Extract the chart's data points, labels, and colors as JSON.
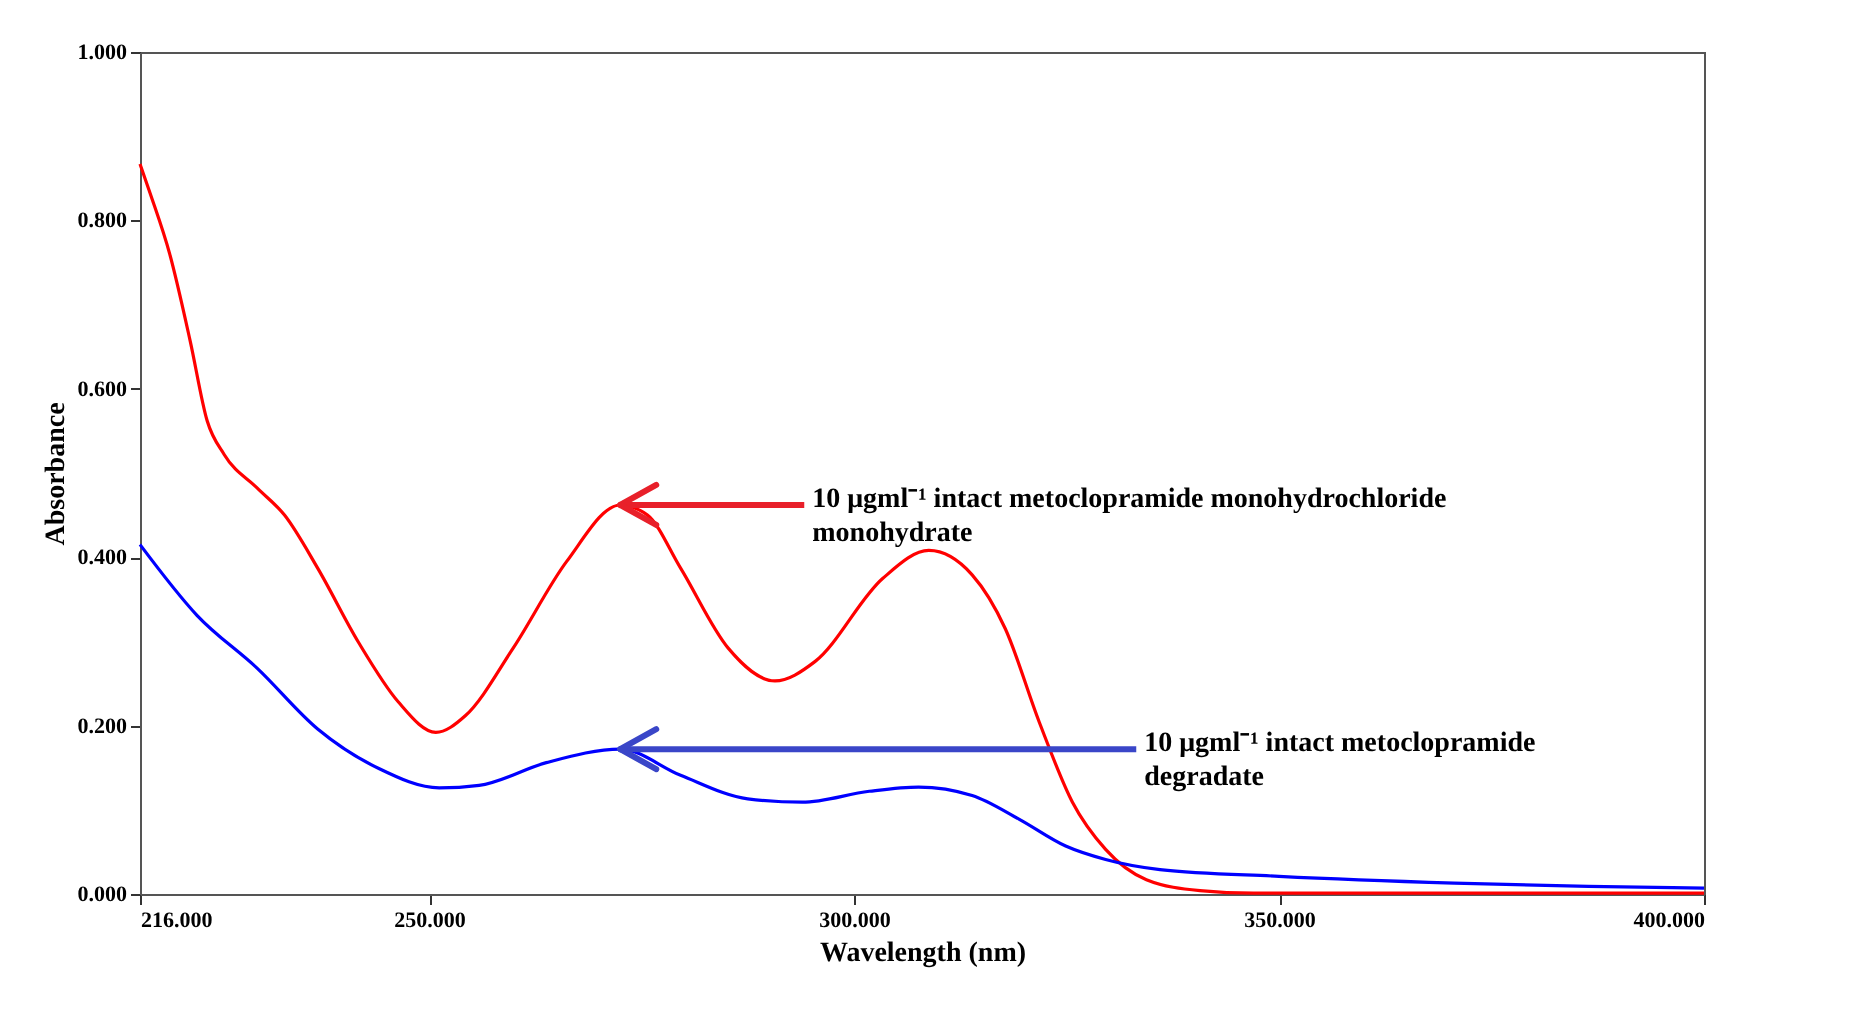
{
  "chart_data": {
    "type": "line",
    "xlabel": "Wavelength (nm)",
    "ylabel": "Absorbance",
    "xlim": [
      216,
      400
    ],
    "ylim": [
      0,
      1
    ],
    "xticks": [
      {
        "value": 216,
        "label": "216.000"
      },
      {
        "value": 250,
        "label": "250.000"
      },
      {
        "value": 300,
        "label": "300.000"
      },
      {
        "value": 350,
        "label": "350.000"
      },
      {
        "value": 400,
        "label": "400.000"
      }
    ],
    "yticks": [
      {
        "value": 0,
        "label": "0.000"
      },
      {
        "value": 0.2,
        "label": "0.200"
      },
      {
        "value": 0.4,
        "label": "0.400"
      },
      {
        "value": 0.6,
        "label": "0.600"
      },
      {
        "value": 0.8,
        "label": "0.800"
      },
      {
        "value": 1,
        "label": "1.000"
      }
    ],
    "grid": false,
    "legend": false,
    "line_style": "solid",
    "marker": "none",
    "series": [
      {
        "color": "#ff0000",
        "x": [
          216,
          217.2,
          219.5,
          221.9,
          223.9,
          225.9,
          229.8,
          233.0,
          236.9,
          241.7,
          246.4,
          250.8,
          254.3,
          259.9,
          266.2,
          272.5,
          275.7,
          279.6,
          285.2,
          290.7,
          295.4,
          303.4,
          308.8,
          313.9,
          317.8,
          321.8,
          325.7,
          329.6,
          334.4,
          340.7,
          347,
          400
        ],
        "values": [
          0.867,
          0.832,
          0.76,
          0.657,
          0.562,
          0.522,
          0.482,
          0.45,
          0.387,
          0.299,
          0.228,
          0.192,
          0.212,
          0.292,
          0.395,
          0.462,
          0.45,
          0.387,
          0.292,
          0.253,
          0.276,
          0.375,
          0.408,
          0.379,
          0.315,
          0.204,
          0.109,
          0.053,
          0.017,
          0.004,
          0.001,
          0.001
        ]
      },
      {
        "color": "#0000ff",
        "x": [
          216,
          222.7,
          229.8,
          236.9,
          244.1,
          251.2,
          255.9,
          263.8,
          272.5,
          279.6,
          287.5,
          293.9,
          301.8,
          307.6,
          313.9,
          319.4,
          324.9,
          329.6,
          336.0,
          350,
          370.6,
          386.4,
          400
        ],
        "values": [
          0.415,
          0.331,
          0.268,
          0.196,
          0.149,
          0.126,
          0.129,
          0.156,
          0.172,
          0.141,
          0.113,
          0.109,
          0.122,
          0.127,
          0.117,
          0.089,
          0.057,
          0.041,
          0.029,
          0.021,
          0.013,
          0.009,
          0.007
        ]
      }
    ],
    "annotations": [
      {
        "text": "10 μgml⁻¹ intact metoclopramide monohydrochloride\nmonohydrate",
        "x": 272.5,
        "y": 0.462
      },
      {
        "text": "10 μgml⁻¹ intact metoclopramide\ndegradate",
        "x": 272.5,
        "y": 0.172
      }
    ]
  }
}
